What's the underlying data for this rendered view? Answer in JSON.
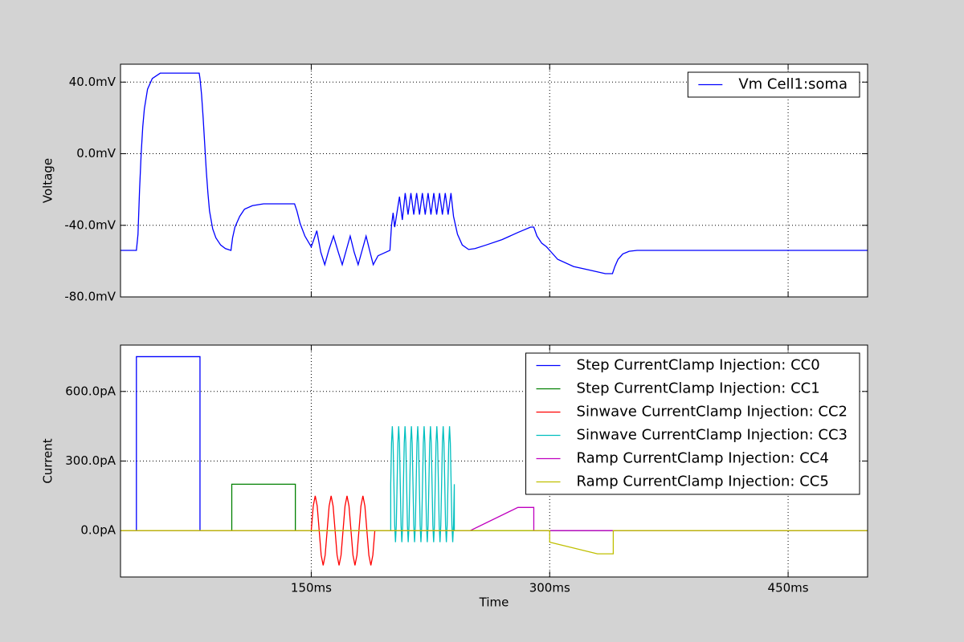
{
  "chart_data": [
    {
      "type": "line",
      "ylabel": "Voltage",
      "xlim": [
        30,
        500
      ],
      "xticks": [
        150,
        300,
        450
      ],
      "ylim": [
        -80,
        50
      ],
      "yticks": [
        {
          "value": -80,
          "label": "-80.0mV"
        },
        {
          "value": -40,
          "label": "-40.0mV"
        },
        {
          "value": 0,
          "label": "0.0mV"
        },
        {
          "value": 40,
          "label": "40.0mV"
        }
      ],
      "grid": true,
      "legend": "upper right",
      "series": [
        {
          "name": "Vm Cell1:soma",
          "color": "#0000ff",
          "x": [
            30,
            40,
            41,
            42,
            43,
            44,
            45,
            47,
            50,
            55,
            79.5,
            80,
            81,
            82,
            83,
            84,
            85,
            86,
            88,
            90,
            93,
            96,
            99.5,
            100.5,
            102,
            105,
            108,
            113,
            120,
            139.5,
            141,
            143,
            146,
            150,
            152,
            153.5,
            156,
            158.5,
            161,
            164,
            167,
            169.5,
            172,
            174.5,
            177,
            179.5,
            182,
            184.5,
            187,
            189,
            192,
            199.5,
            200.5,
            201.5,
            202.5,
            205.5,
            207.3,
            209.1,
            210.9,
            212.7,
            214.5,
            216.3,
            218.1,
            219.9,
            221.7,
            223.5,
            225.3,
            227.1,
            228.9,
            230.7,
            232.5,
            234.3,
            236.1,
            237.9,
            239.5,
            242,
            245,
            249,
            253,
            260,
            270,
            280,
            288,
            290,
            292,
            295,
            298,
            300,
            305,
            315,
            325,
            335,
            339.5,
            341,
            343,
            346,
            350,
            355,
            400,
            500
          ],
          "values": [
            -54,
            -54,
            -45,
            -20,
            0,
            15,
            25,
            36,
            42,
            45,
            45,
            42,
            33,
            20,
            5,
            -10,
            -22,
            -32,
            -42,
            -47,
            -51,
            -53,
            -54,
            -47,
            -41,
            -35,
            -31,
            -29,
            -28,
            -28,
            -32,
            -39,
            -46,
            -52,
            -47,
            -43,
            -55,
            -62,
            -54,
            -46,
            -55,
            -62,
            -54,
            -46,
            -55,
            -62,
            -54,
            -46,
            -55,
            -62,
            -57,
            -54,
            -40,
            -33,
            -41,
            -24,
            -37,
            -22,
            -34,
            -22,
            -34,
            -22,
            -34,
            -22,
            -34,
            -22,
            -34,
            -22,
            -34,
            -22,
            -34,
            -22,
            -34,
            -22,
            -35,
            -45,
            -51,
            -53.5,
            -53,
            -51,
            -48,
            -44,
            -41,
            -41,
            -46,
            -50,
            -52,
            -54,
            -59,
            -63,
            -65,
            -67,
            -67,
            -63,
            -59,
            -56,
            -54.5,
            -54,
            -54,
            -54
          ]
        }
      ]
    },
    {
      "type": "line",
      "ylabel": "Current",
      "xlabel": "Time",
      "xlim": [
        30,
        500
      ],
      "xticks": [
        {
          "value": 150,
          "label": "150ms"
        },
        {
          "value": 300,
          "label": "300ms"
        },
        {
          "value": 450,
          "label": "450ms"
        }
      ],
      "ylim": [
        -200,
        800
      ],
      "yticks": [
        {
          "value": 0,
          "label": "0.0pA"
        },
        {
          "value": 300,
          "label": "300.0pA"
        },
        {
          "value": 600,
          "label": "600.0pA"
        }
      ],
      "grid": true,
      "legend": "upper right",
      "series": [
        {
          "name": "Step CurrentClamp Injection: CC0",
          "color": "#0000ff",
          "x": [
            30,
            40,
            40,
            80,
            80,
            500
          ],
          "values": [
            0,
            0,
            750,
            750,
            0,
            0
          ]
        },
        {
          "name": "Step CurrentClamp Injection: CC1",
          "color": "#008000",
          "x": [
            30,
            100,
            100,
            140,
            140,
            500
          ],
          "values": [
            0,
            0,
            200,
            200,
            0,
            0
          ]
        },
        {
          "name": "Sinwave CurrentClamp Injection: CC2",
          "color": "#ff0000",
          "x": [
            30,
            150,
            151.25,
            152.5,
            153.75,
            155,
            156.25,
            157.5,
            158.75,
            160,
            161.25,
            162.5,
            163.75,
            165,
            166.25,
            167.5,
            168.75,
            170,
            171.25,
            172.5,
            173.75,
            175,
            176.25,
            177.5,
            178.75,
            180,
            181.25,
            182.5,
            183.75,
            185,
            186.25,
            187.5,
            188.75,
            190,
            500
          ],
          "values": [
            0,
            0,
            106,
            150,
            106,
            0,
            -106,
            -150,
            -106,
            0,
            106,
            150,
            106,
            0,
            -106,
            -150,
            -106,
            0,
            106,
            150,
            106,
            0,
            -106,
            -150,
            -106,
            0,
            106,
            150,
            106,
            0,
            -106,
            -150,
            -106,
            0,
            0
          ]
        },
        {
          "name": "Sinwave CurrentClamp Injection: CC3",
          "color": "#00bfbf",
          "x": [
            30,
            200,
            200,
            200.5,
            201,
            201.5,
            202,
            202.5,
            203,
            203.5,
            204,
            204.5,
            205,
            205.5,
            206,
            206.5,
            207,
            207.5,
            208,
            208.5,
            209,
            209.5,
            210,
            210.5,
            211,
            211.5,
            212,
            212.5,
            213,
            213.5,
            214,
            214.5,
            215,
            215.5,
            216,
            216.5,
            217,
            217.5,
            218,
            218.5,
            219,
            219.5,
            220,
            220.5,
            221,
            221.5,
            222,
            222.5,
            223,
            223.5,
            224,
            224.5,
            225,
            225.5,
            226,
            226.5,
            227,
            227.5,
            228,
            228.5,
            229,
            229.5,
            230,
            230.5,
            231,
            231.5,
            232,
            232.5,
            233,
            233.5,
            234,
            234.5,
            235,
            235.5,
            236,
            236.5,
            237,
            237.5,
            238,
            238.5,
            239,
            239.5,
            240,
            240,
            500
          ],
          "values": [
            0,
            0,
            200,
            377,
            450,
            377,
            200,
            23,
            -50,
            23,
            200,
            377,
            450,
            377,
            200,
            23,
            -50,
            23,
            200,
            377,
            450,
            377,
            200,
            23,
            -50,
            23,
            200,
            377,
            450,
            377,
            200,
            23,
            -50,
            23,
            200,
            377,
            450,
            377,
            200,
            23,
            -50,
            23,
            200,
            377,
            450,
            377,
            200,
            23,
            -50,
            23,
            200,
            377,
            450,
            377,
            200,
            23,
            -50,
            23,
            200,
            377,
            450,
            377,
            200,
            23,
            -50,
            23,
            200,
            377,
            450,
            377,
            200,
            23,
            -50,
            23,
            200,
            377,
            450,
            377,
            200,
            23,
            -50,
            23,
            200,
            0,
            0
          ]
        },
        {
          "name": "Ramp CurrentClamp Injection: CC4",
          "color": "#bf00bf",
          "x": [
            30,
            250,
            280,
            290,
            290,
            500
          ],
          "values": [
            0,
            0,
            100,
            100,
            0,
            0
          ]
        },
        {
          "name": "Ramp CurrentClamp Injection: CC5",
          "color": "#bfbf00",
          "x": [
            30,
            300,
            300,
            330,
            340,
            340,
            500
          ],
          "values": [
            0,
            0,
            -50,
            -100,
            -100,
            0,
            0
          ]
        }
      ]
    }
  ]
}
